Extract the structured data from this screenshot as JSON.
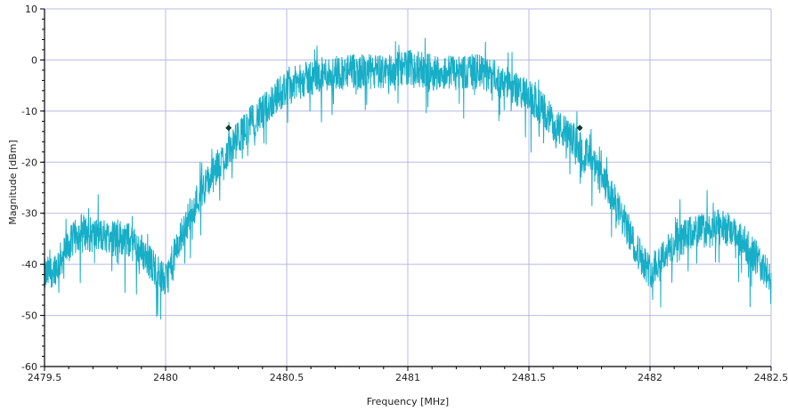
{
  "chart_data": {
    "type": "line",
    "title": "",
    "xlabel": "Frequency [MHz]",
    "ylabel": "Magnitude [dBm]",
    "xlim": [
      2479.5,
      2482.5
    ],
    "ylim": [
      -60,
      10
    ],
    "xticks": [
      "2479.5",
      "2480",
      "2480.5",
      "2481",
      "2481.5",
      "2482",
      "2482.5"
    ],
    "yticks": [
      "10",
      "0",
      "-10",
      "-20",
      "-30",
      "-40",
      "-50",
      "-60"
    ],
    "grid": true,
    "series": [
      {
        "color": "#17aec7",
        "envelope_x": [
          2479.5,
          2479.55,
          2479.6,
          2479.65,
          2479.7,
          2479.75,
          2479.8,
          2479.85,
          2479.9,
          2479.95,
          2480.0,
          2480.05,
          2480.1,
          2480.15,
          2480.2,
          2480.25,
          2480.3,
          2480.35,
          2480.4,
          2480.45,
          2480.5,
          2480.6,
          2480.7,
          2480.8,
          2480.9,
          2481.0,
          2481.1,
          2481.2,
          2481.3,
          2481.4,
          2481.5,
          2481.55,
          2481.6,
          2481.65,
          2481.7,
          2481.75,
          2481.8,
          2481.85,
          2481.9,
          2481.95,
          2482.0,
          2482.05,
          2482.1,
          2482.15,
          2482.2,
          2482.25,
          2482.3,
          2482.35,
          2482.4,
          2482.45,
          2482.5
        ],
        "envelope_y": [
          -42,
          -40,
          -36,
          -33,
          -34,
          -34,
          -34,
          -35,
          -37,
          -40,
          -43,
          -36,
          -30,
          -25,
          -22,
          -18,
          -15,
          -12,
          -10,
          -7,
          -5,
          -3,
          -2,
          -2,
          -2,
          -1,
          -2,
          -2,
          -2,
          -4,
          -7,
          -9,
          -12,
          -14,
          -16,
          -19,
          -23,
          -27,
          -32,
          -37,
          -41,
          -38,
          -36,
          -34,
          -33,
          -33,
          -32,
          -34,
          -36,
          -39,
          -43
        ]
      }
    ],
    "markers": [
      {
        "x": 2480.26,
        "y": -13.3,
        "color": "#0e3b2a"
      },
      {
        "x": 2481.71,
        "y": -13.3,
        "color": "#0e3b2a"
      }
    ],
    "colors": {
      "grid": "#b9b9e3",
      "axis": "#000000",
      "background": "#ffffff"
    }
  }
}
